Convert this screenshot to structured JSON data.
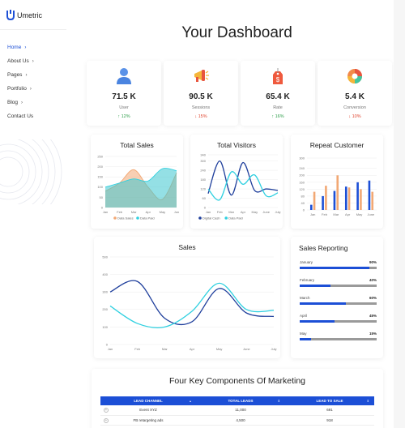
{
  "app": {
    "name": "Umetric"
  },
  "nav": [
    {
      "label": "Home",
      "active": true
    },
    {
      "label": "About Us",
      "active": false
    },
    {
      "label": "Pages",
      "active": false
    },
    {
      "label": "Portfolio",
      "active": false
    },
    {
      "label": "Blog",
      "active": false
    },
    {
      "label": "Contact Us",
      "active": false
    }
  ],
  "page_title": "Your Dashboard",
  "stats": [
    {
      "icon": "user-icon",
      "value": "71.5 K",
      "label": "User",
      "change": "↑ 12%",
      "direction": "up"
    },
    {
      "icon": "megaphone-icon",
      "value": "90.5 K",
      "label": "Sessions",
      "change": "↓ 15%",
      "direction": "down"
    },
    {
      "icon": "price-tag-icon",
      "value": "65.4 K",
      "label": "Rate",
      "change": "↑ 16%",
      "direction": "up"
    },
    {
      "icon": "pie-chart-icon",
      "value": "5.4 K",
      "label": "Conversion",
      "change": "↓ 10%",
      "direction": "down"
    }
  ],
  "colors": {
    "accent": "#1c4fd6",
    "navy": "#1f3f9c",
    "cyan": "#2fd0e0",
    "orange": "#f2a874",
    "up": "#2e9e4a",
    "down": "#e0452f"
  },
  "chart_data": [
    {
      "id": "total-sales",
      "type": "area",
      "title": "Total Sales",
      "categories": [
        "Jan",
        "Feb",
        "Mar",
        "Apr",
        "May",
        "Jun"
      ],
      "ylim": [
        0,
        250
      ],
      "yticks": [
        0,
        50,
        100,
        150,
        200,
        250
      ],
      "series": [
        {
          "name": "Data Sales",
          "values": [
            80,
            120,
            185,
            100,
            40,
            170
          ]
        },
        {
          "name": "Data Paid",
          "values": [
            100,
            120,
            140,
            130,
            190,
            180
          ]
        }
      ],
      "legend": "bottom"
    },
    {
      "id": "total-visitors",
      "type": "line",
      "title": "Total Visitors",
      "categories": [
        "Jan",
        "Feb",
        "Mar",
        "Apr",
        "May",
        "June",
        "July"
      ],
      "ylim": [
        0,
        340
      ],
      "yticks": [
        0,
        60,
        120,
        180,
        240,
        300,
        340
      ],
      "series": [
        {
          "name": "Digital Cash",
          "values": [
            90,
            300,
            80,
            290,
            110,
            120,
            110
          ]
        },
        {
          "name": "Data Paid",
          "values": [
            120,
            50,
            230,
            150,
            210,
            75,
            95
          ]
        }
      ],
      "legend": "bottom"
    },
    {
      "id": "repeat-customer",
      "type": "bar",
      "title": "Repeat Customer",
      "categories": [
        "Jan",
        "Feb",
        "Mar",
        "Apr",
        "May",
        "June"
      ],
      "ylim": [
        0,
        300
      ],
      "yticks": [
        0,
        40,
        80,
        120,
        160,
        200,
        240,
        300
      ],
      "series": [
        {
          "name": "",
          "color": "#1c4fd6",
          "values": [
            30,
            80,
            110,
            135,
            160,
            170
          ]
        },
        {
          "name": "",
          "color": "#f2a874",
          "values": [
            105,
            140,
            200,
            130,
            120,
            105
          ]
        }
      ]
    },
    {
      "id": "sales",
      "type": "line",
      "title": "Sales",
      "categories": [
        "Jan",
        "Feb",
        "Mar",
        "Apr",
        "May",
        "June",
        "July"
      ],
      "ylim": [
        0,
        500
      ],
      "yticks": [
        0,
        100,
        200,
        300,
        400,
        500
      ],
      "series": [
        {
          "name": "",
          "color": "#1f3f9c",
          "values": [
            300,
            360,
            150,
            130,
            320,
            180,
            160
          ]
        },
        {
          "name": "",
          "color": "#2fd0e0",
          "values": [
            220,
            120,
            100,
            190,
            350,
            200,
            195
          ]
        }
      ]
    }
  ],
  "sales_reporting": {
    "title": "Sales Reporting",
    "items": [
      {
        "label": "January",
        "percent_text": "90%",
        "percent": 90
      },
      {
        "label": "February",
        "percent_text": "40%",
        "percent": 40
      },
      {
        "label": "March",
        "percent_text": "60%",
        "percent": 60
      },
      {
        "label": "April",
        "percent_text": "45%",
        "percent": 45
      },
      {
        "label": "May",
        "percent_text": "15%",
        "percent": 15
      }
    ]
  },
  "marketing": {
    "title": "Four Key Components Of Marketing",
    "columns": [
      "LEAD CHANNEL",
      "TOTAL LEADS",
      "LEAD TO SALE"
    ],
    "rows": [
      [
        "Event XYZ",
        "11,000",
        "691"
      ],
      [
        "FB retargeting ads",
        "4,500",
        "918"
      ]
    ]
  }
}
